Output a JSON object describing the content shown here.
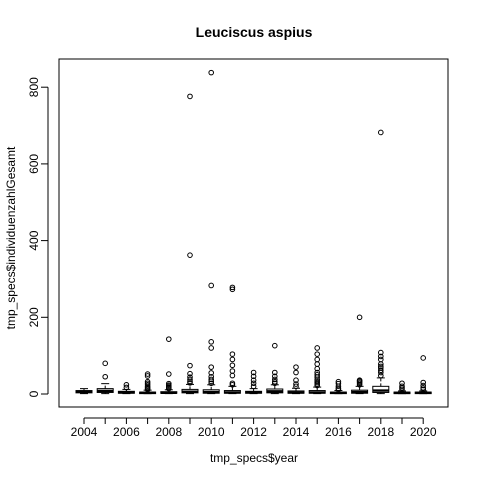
{
  "chart_data": {
    "type": "box",
    "title": "Leuciscus aspius",
    "xlabel": "tmp_specs$year",
    "ylabel": "tmp_specs$individuenzahlGesamt",
    "x_tick_labels": [
      "2004",
      "2006",
      "2008",
      "2010",
      "2012",
      "2014",
      "2016",
      "2018",
      "2020"
    ],
    "y_ticks": [
      0,
      200,
      400,
      600,
      800
    ],
    "ylim": [
      -21,
      860
    ],
    "grid": false,
    "legend": "none",
    "categories": [
      "2004",
      "2005",
      "2006",
      "2007",
      "2008",
      "2009",
      "2010",
      "2011",
      "2012",
      "2013",
      "2014",
      "2015",
      "2016",
      "2017",
      "2018",
      "2019",
      "2020"
    ],
    "boxes": [
      {
        "year": "2004",
        "min": 1,
        "q1": 3,
        "median": 6,
        "q3": 9,
        "max": 14,
        "outliers": []
      },
      {
        "year": "2005",
        "min": 1,
        "q1": 4,
        "median": 8,
        "q3": 14,
        "max": 27,
        "outliers": [
          45,
          80
        ]
      },
      {
        "year": "2006",
        "min": 1,
        "q1": 2,
        "median": 4,
        "q3": 7,
        "max": 12,
        "outliers": [
          17,
          24
        ]
      },
      {
        "year": "2007",
        "min": 1,
        "q1": 1,
        "median": 3,
        "q3": 5,
        "max": 10,
        "outliers": [
          12,
          14,
          17,
          20,
          24,
          28,
          32,
          47,
          52
        ]
      },
      {
        "year": "2008",
        "min": 1,
        "q1": 2,
        "median": 3,
        "q3": 6,
        "max": 11,
        "outliers": [
          14,
          17,
          20,
          23,
          27,
          52,
          143
        ]
      },
      {
        "year": "2009",
        "min": 1,
        "q1": 3,
        "median": 6,
        "q3": 12,
        "max": 25,
        "outliers": [
          29,
          33,
          38,
          44,
          53,
          74,
          362,
          776
        ]
      },
      {
        "year": "2010",
        "min": 1,
        "q1": 2,
        "median": 5,
        "q3": 11,
        "max": 24,
        "outliers": [
          28,
          33,
          38,
          45,
          55,
          70,
          120,
          136,
          283,
          838
        ]
      },
      {
        "year": "2011",
        "min": 1,
        "q1": 2,
        "median": 4,
        "q3": 9,
        "max": 20,
        "outliers": [
          24,
          28,
          48,
          60,
          75,
          90,
          104,
          273,
          278
        ]
      },
      {
        "year": "2012",
        "min": 1,
        "q1": 2,
        "median": 4,
        "q3": 7,
        "max": 14,
        "outliers": [
          20,
          28,
          36,
          46,
          56
        ]
      },
      {
        "year": "2013",
        "min": 1,
        "q1": 3,
        "median": 7,
        "q3": 13,
        "max": 24,
        "outliers": [
          28,
          32,
          38,
          46,
          56,
          126
        ]
      },
      {
        "year": "2014",
        "min": 1,
        "q1": 2,
        "median": 4,
        "q3": 8,
        "max": 15,
        "outliers": [
          20,
          26,
          36,
          56,
          70
        ]
      },
      {
        "year": "2015",
        "min": 1,
        "q1": 2,
        "median": 4,
        "q3": 9,
        "max": 18,
        "outliers": [
          22,
          26,
          30,
          34,
          38,
          44,
          50,
          56,
          66,
          78,
          90,
          104,
          120
        ]
      },
      {
        "year": "2016",
        "min": 1,
        "q1": 1,
        "median": 3,
        "q3": 5,
        "max": 9,
        "outliers": [
          12,
          15,
          20,
          27,
          32
        ]
      },
      {
        "year": "2017",
        "min": 1,
        "q1": 2,
        "median": 5,
        "q3": 10,
        "max": 20,
        "outliers": [
          24,
          28,
          31,
          34,
          36,
          200
        ]
      },
      {
        "year": "2018",
        "min": 1,
        "q1": 4,
        "median": 9,
        "q3": 20,
        "max": 42,
        "outliers": [
          48,
          56,
          62,
          68,
          72,
          78,
          90,
          98,
          108,
          682
        ]
      },
      {
        "year": "2019",
        "min": 1,
        "q1": 1,
        "median": 3,
        "q3": 5,
        "max": 8,
        "outliers": [
          12,
          16,
          20,
          28
        ]
      },
      {
        "year": "2020",
        "min": 1,
        "q1": 1,
        "median": 3,
        "q3": 5,
        "max": 8,
        "outliers": [
          12,
          16,
          22,
          30,
          94
        ]
      }
    ]
  }
}
